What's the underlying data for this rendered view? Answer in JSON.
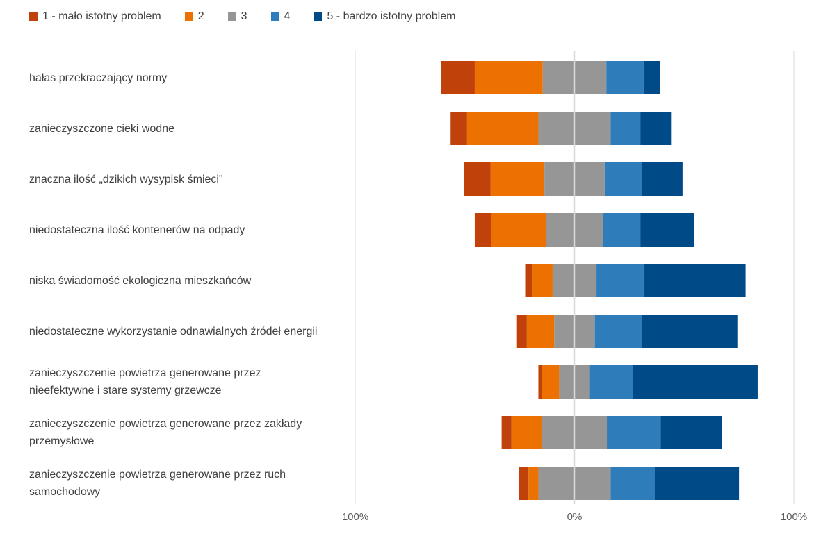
{
  "chart_data": {
    "type": "bar",
    "orientation": "horizontal",
    "stacked": "diverging",
    "xlabel": "",
    "ylabel": "",
    "x_tick_labels": [
      "100%",
      "0%",
      "100%"
    ],
    "xlim": [
      -100,
      100
    ],
    "grid": false,
    "legend_position": "top-left",
    "categories": [
      "hałas przekraczający normy",
      "zanieczyszczone cieki wodne",
      "znaczna ilość „dzikich wysypisk śmieci\"",
      "niedostateczna ilość kontenerów na odpady",
      "niska świadomość ekologiczna mieszkańców",
      "niedostateczne wykorzystanie odnawialnych źródeł energii",
      "zanieczyszczenie powietrza generowane przez nieefektywne i stare systemy grzewcze",
      "zanieczyszczenie powietrza generowane przez zakłady przemysłowe",
      "zanieczyszczenie powietrza generowane przez ruch samochodowy"
    ],
    "series": [
      {
        "name": "1 - mało istotny problem",
        "color": "#c0410a",
        "values": [
          15.5,
          7.5,
          12,
          7.5,
          3,
          4.5,
          1.5,
          4.5,
          4.5
        ]
      },
      {
        "name": "2",
        "color": "#ed7100",
        "values": [
          31,
          32.5,
          24.5,
          25,
          9.5,
          12.5,
          8,
          14,
          4.5
        ]
      },
      {
        "name": "3",
        "color": "#969696",
        "values": [
          29,
          33,
          27.5,
          26,
          20,
          18.5,
          14,
          29.5,
          33
        ]
      },
      {
        "name": "4",
        "color": "#2e7cba",
        "values": [
          17,
          13.5,
          17,
          17,
          21.5,
          21.5,
          19.5,
          24.5,
          20
        ]
      },
      {
        "name": "5 - bardzo istotny problem",
        "color": "#004b87",
        "values": [
          7.5,
          14,
          18.5,
          24.5,
          46.5,
          43.5,
          57,
          28,
          38.5
        ]
      }
    ]
  }
}
